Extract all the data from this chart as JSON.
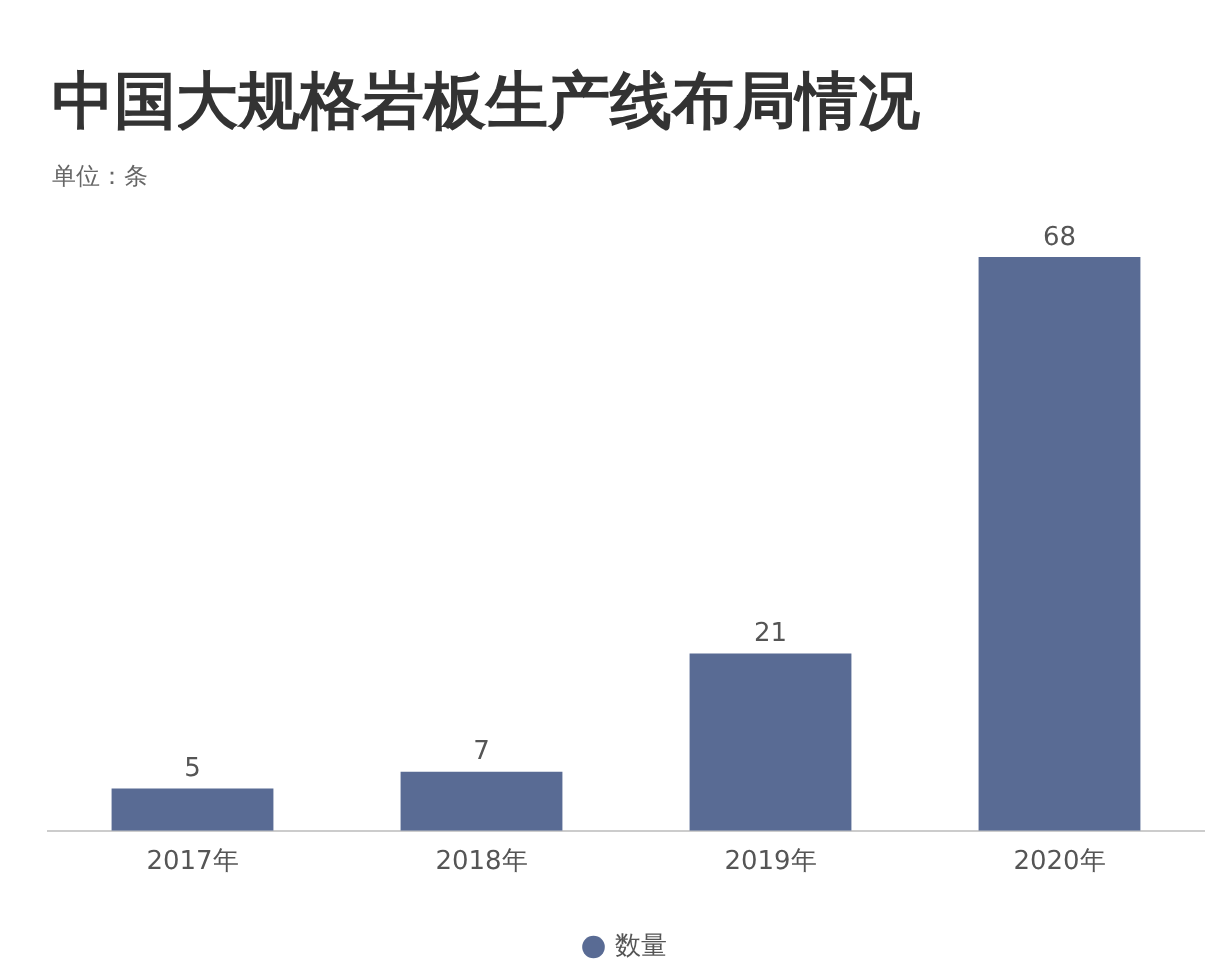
{
  "chart_data": {
    "type": "bar",
    "title": "中国大规格岩板生产线布局情况",
    "subtitle": "单位：条",
    "categories": [
      "2017年",
      "2018年",
      "2019年",
      "2020年"
    ],
    "series": [
      {
        "name": "数量",
        "color": "#596b94",
        "values": [
          5,
          7,
          21,
          68
        ]
      }
    ],
    "data_labels": true,
    "legend": "bottom",
    "grid": false
  }
}
